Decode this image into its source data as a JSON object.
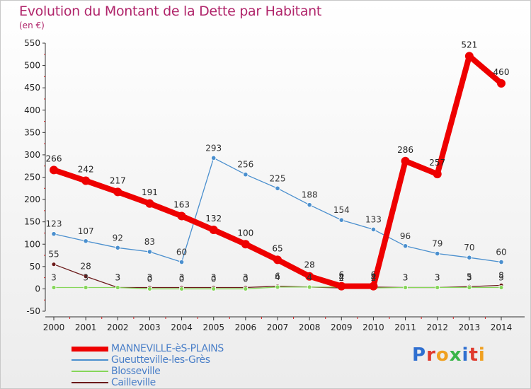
{
  "header": {
    "title": "Evolution du Montant de la Dette par Habitant",
    "unit": "(en €)"
  },
  "brand": {
    "text": "Proxiti",
    "letter_colors": [
      "#2f6fd0",
      "#e03a2e",
      "#f0a020",
      "#3ab54a",
      "#2f6fd0",
      "#e03a2e",
      "#f0a020"
    ]
  },
  "chart_data": {
    "type": "line",
    "title": "Evolution du Montant de la Dette par Habitant",
    "subtitle": "(en €)",
    "xlabel": "",
    "ylabel": "",
    "x": [
      "2000",
      "2001",
      "2002",
      "2003",
      "2004",
      "2005",
      "2006",
      "2007",
      "2008",
      "2009",
      "2010",
      "2011",
      "2012",
      "2013",
      "2014"
    ],
    "ylim": [
      -50,
      550
    ],
    "yticks": [
      -50,
      0,
      50,
      100,
      150,
      200,
      250,
      300,
      350,
      400,
      450,
      500,
      550
    ],
    "grid": false,
    "legend_position": "bottom-left",
    "series": [
      {
        "name": "MANNEVILLE-èS-PLAINS",
        "color": "#ee0000",
        "values": [
          266,
          242,
          217,
          191,
          163,
          132,
          100,
          65,
          28,
          6,
          6,
          286,
          257,
          521,
          460
        ],
        "labels": [
          "266",
          "242",
          "217",
          "191",
          "163",
          "132",
          "100",
          "65",
          "28",
          "6",
          "6",
          "286",
          "257",
          "521",
          "460"
        ]
      },
      {
        "name": "Gueutteville-les-Grès",
        "color": "#4a8fce",
        "values": [
          123,
          107,
          92,
          83,
          60,
          293,
          256,
          225,
          188,
          154,
          133,
          96,
          79,
          70,
          60
        ],
        "labels": [
          "123",
          "107",
          "92",
          "83",
          "60",
          "293",
          "256",
          "225",
          "188",
          "154",
          "133",
          "96",
          "79",
          "70",
          "60"
        ]
      },
      {
        "name": "Blosseville",
        "color": "#86d65a",
        "values": [
          3,
          3,
          3,
          0,
          0,
          0,
          0,
          4,
          4,
          4,
          2,
          3,
          3,
          3,
          3
        ],
        "labels": [
          "3",
          "3",
          "3",
          "0",
          "0",
          "0",
          "0",
          "4",
          "4",
          "4",
          "2",
          "3",
          "3",
          "3",
          "3"
        ]
      },
      {
        "name": "Cailleville",
        "color": "#6b1a1a",
        "values": [
          55,
          28,
          3,
          3,
          3,
          3,
          3,
          6,
          4,
          2,
          4,
          3,
          3,
          5,
          8
        ],
        "labels": [
          "55",
          "28",
          "3",
          "3",
          "3",
          "3",
          "3",
          "6",
          "4",
          "2",
          "4",
          "3",
          "3",
          "5",
          "8"
        ]
      }
    ]
  }
}
